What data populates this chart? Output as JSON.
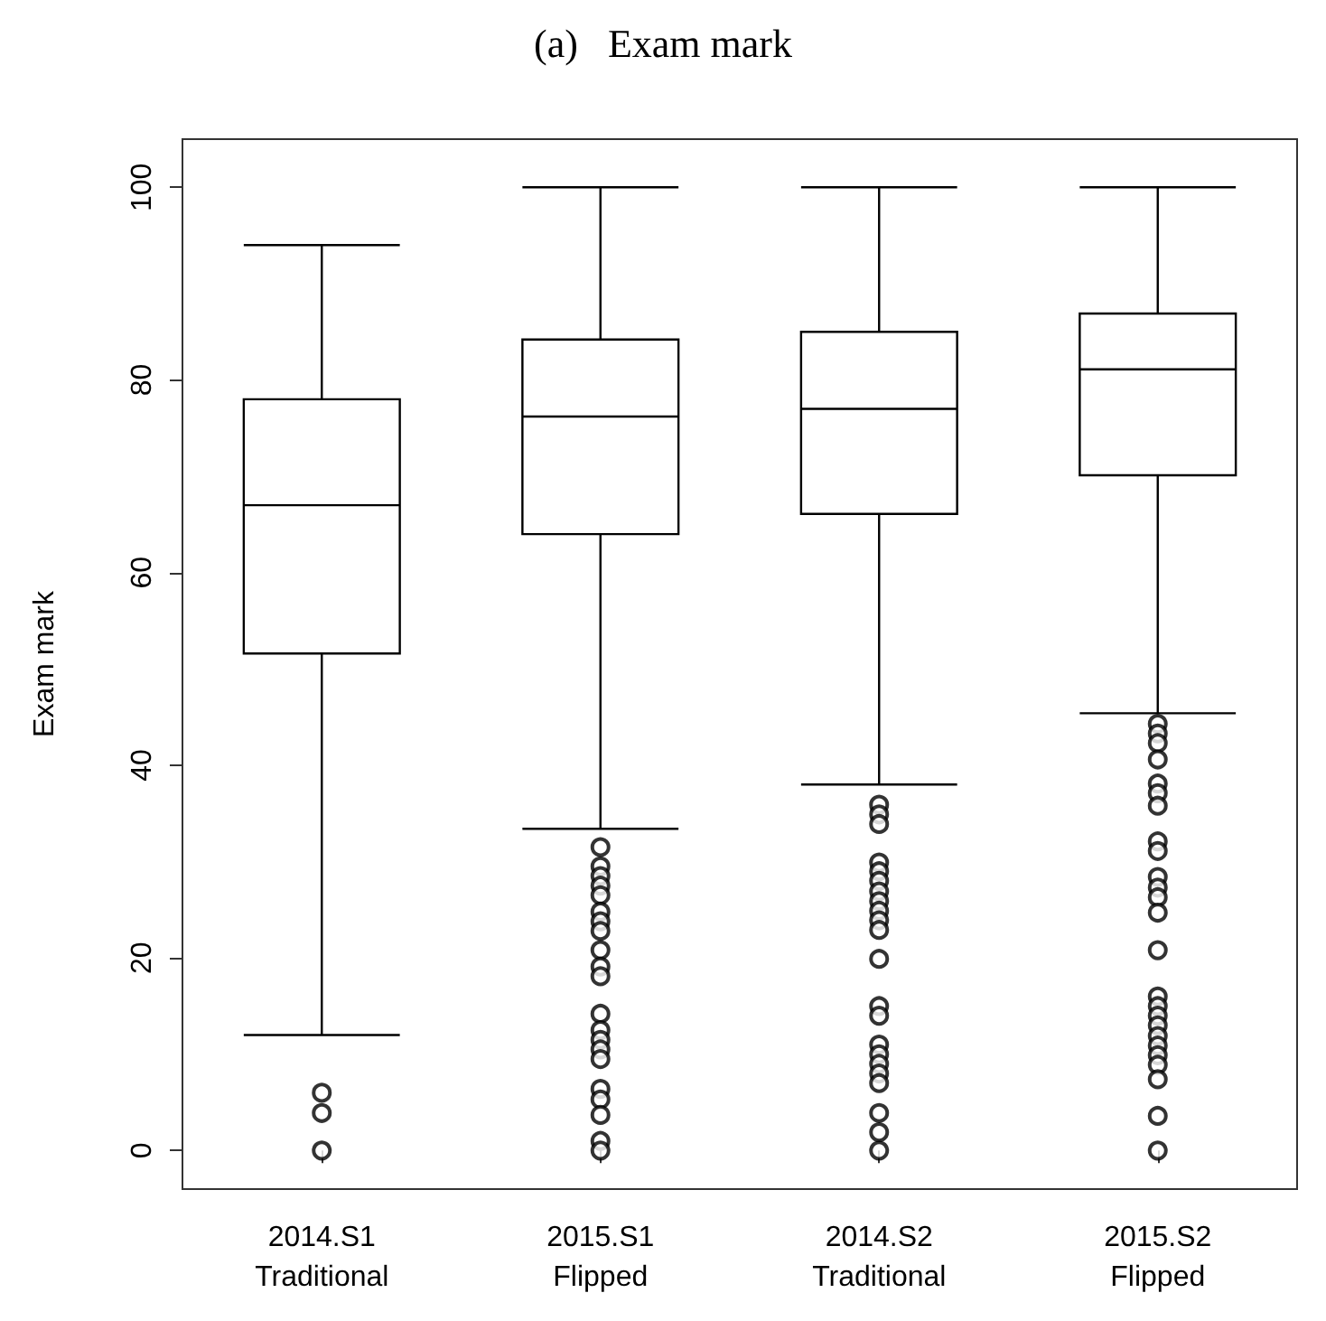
{
  "chart_data": {
    "type": "box",
    "title": "(a)   Exam mark",
    "ylabel": "Exam mark",
    "categories": [
      "2014.S1\nTraditional",
      "2015.S1\nFlipped",
      "2014.S2\nTraditional",
      "2015.S2\nFlipped"
    ],
    "boxes": [
      {
        "low": 12,
        "q1": 51.6,
        "median": 67,
        "q3": 78,
        "high": 94,
        "outliers": [
          6,
          3.9,
          0
        ]
      },
      {
        "low": 33.4,
        "q1": 64,
        "median": 76.2,
        "q3": 84.2,
        "high": 100,
        "outliers": [
          31.5,
          29.5,
          28.5,
          27.5,
          26.5,
          24.8,
          23.8,
          22.8,
          20.8,
          19.1,
          18.1,
          14.2,
          12.5,
          11.5,
          10.5,
          9.5,
          6.4,
          5.3,
          3.7,
          1,
          0
        ]
      },
      {
        "low": 38,
        "q1": 66.1,
        "median": 77,
        "q3": 85,
        "high": 100,
        "outliers": [
          35.9,
          34.9,
          33.9,
          29.9,
          29,
          28,
          26.9,
          25.9,
          24.9,
          23.9,
          22.9,
          19.9,
          15,
          14,
          11,
          10,
          9,
          8,
          7,
          3.9,
          1.9,
          0
        ]
      },
      {
        "low": 45.4,
        "q1": 70.1,
        "median": 81.1,
        "q3": 86.9,
        "high": 100,
        "outliers": [
          44.3,
          43.3,
          42.3,
          40.6,
          38.1,
          37.1,
          35.8,
          32.1,
          31.1,
          28.4,
          27.3,
          26.3,
          24.7,
          20.8,
          16,
          15,
          14,
          13,
          11.9,
          10.9,
          9.9,
          8.9,
          7.4,
          3.6,
          0
        ]
      }
    ],
    "color": "#000000",
    "ylim": [
      -4,
      105
    ],
    "yticks": [
      0,
      20,
      40,
      60,
      80,
      100
    ],
    "grid": false,
    "marker": "circle"
  }
}
